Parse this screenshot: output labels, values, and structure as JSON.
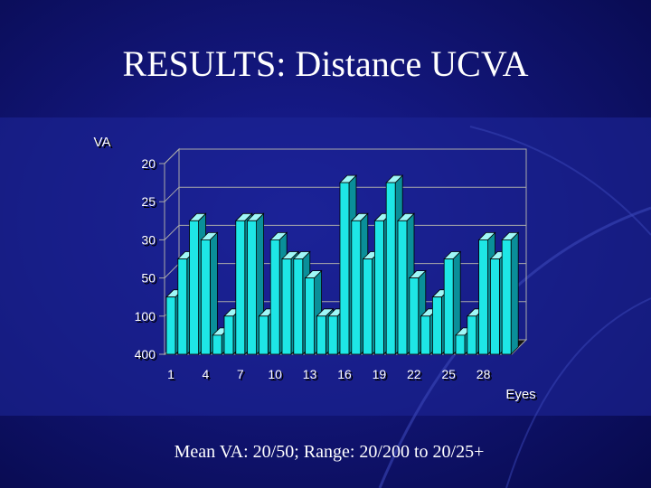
{
  "title": "RESULTS: Distance UCVA",
  "caption": "Mean VA: 20/50;  Range: 20/200 to 20/25+",
  "chart_data": {
    "type": "bar3d",
    "y_label": "VA",
    "x_label": "Eyes",
    "categories": [
      "1",
      null,
      null,
      "4",
      null,
      null,
      "7",
      null,
      null,
      "10",
      null,
      null,
      "13",
      null,
      null,
      "16",
      null,
      null,
      "19",
      null,
      null,
      "22",
      null,
      null,
      "25",
      null,
      null,
      "28",
      null,
      null
    ],
    "values": [
      1.5,
      2.5,
      3.5,
      3,
      0.5,
      1,
      3.5,
      3.5,
      1,
      3,
      2.5,
      2.5,
      2,
      1,
      1,
      4.5,
      3.5,
      2.5,
      3.5,
      4.5,
      3.5,
      2,
      1,
      1.5,
      2.5,
      0.5,
      1,
      3,
      2.5,
      3
    ],
    "color": "#1ee6e6",
    "ylim": [
      0,
      5
    ],
    "yticks": [
      {
        "value": 0,
        "label": "400"
      },
      {
        "value": 1,
        "label": "100"
      },
      {
        "value": 2,
        "label": "50"
      },
      {
        "value": 3,
        "label": "30"
      },
      {
        "value": 4,
        "label": "25"
      },
      {
        "value": 5,
        "label": "20"
      }
    ],
    "grid": true
  }
}
